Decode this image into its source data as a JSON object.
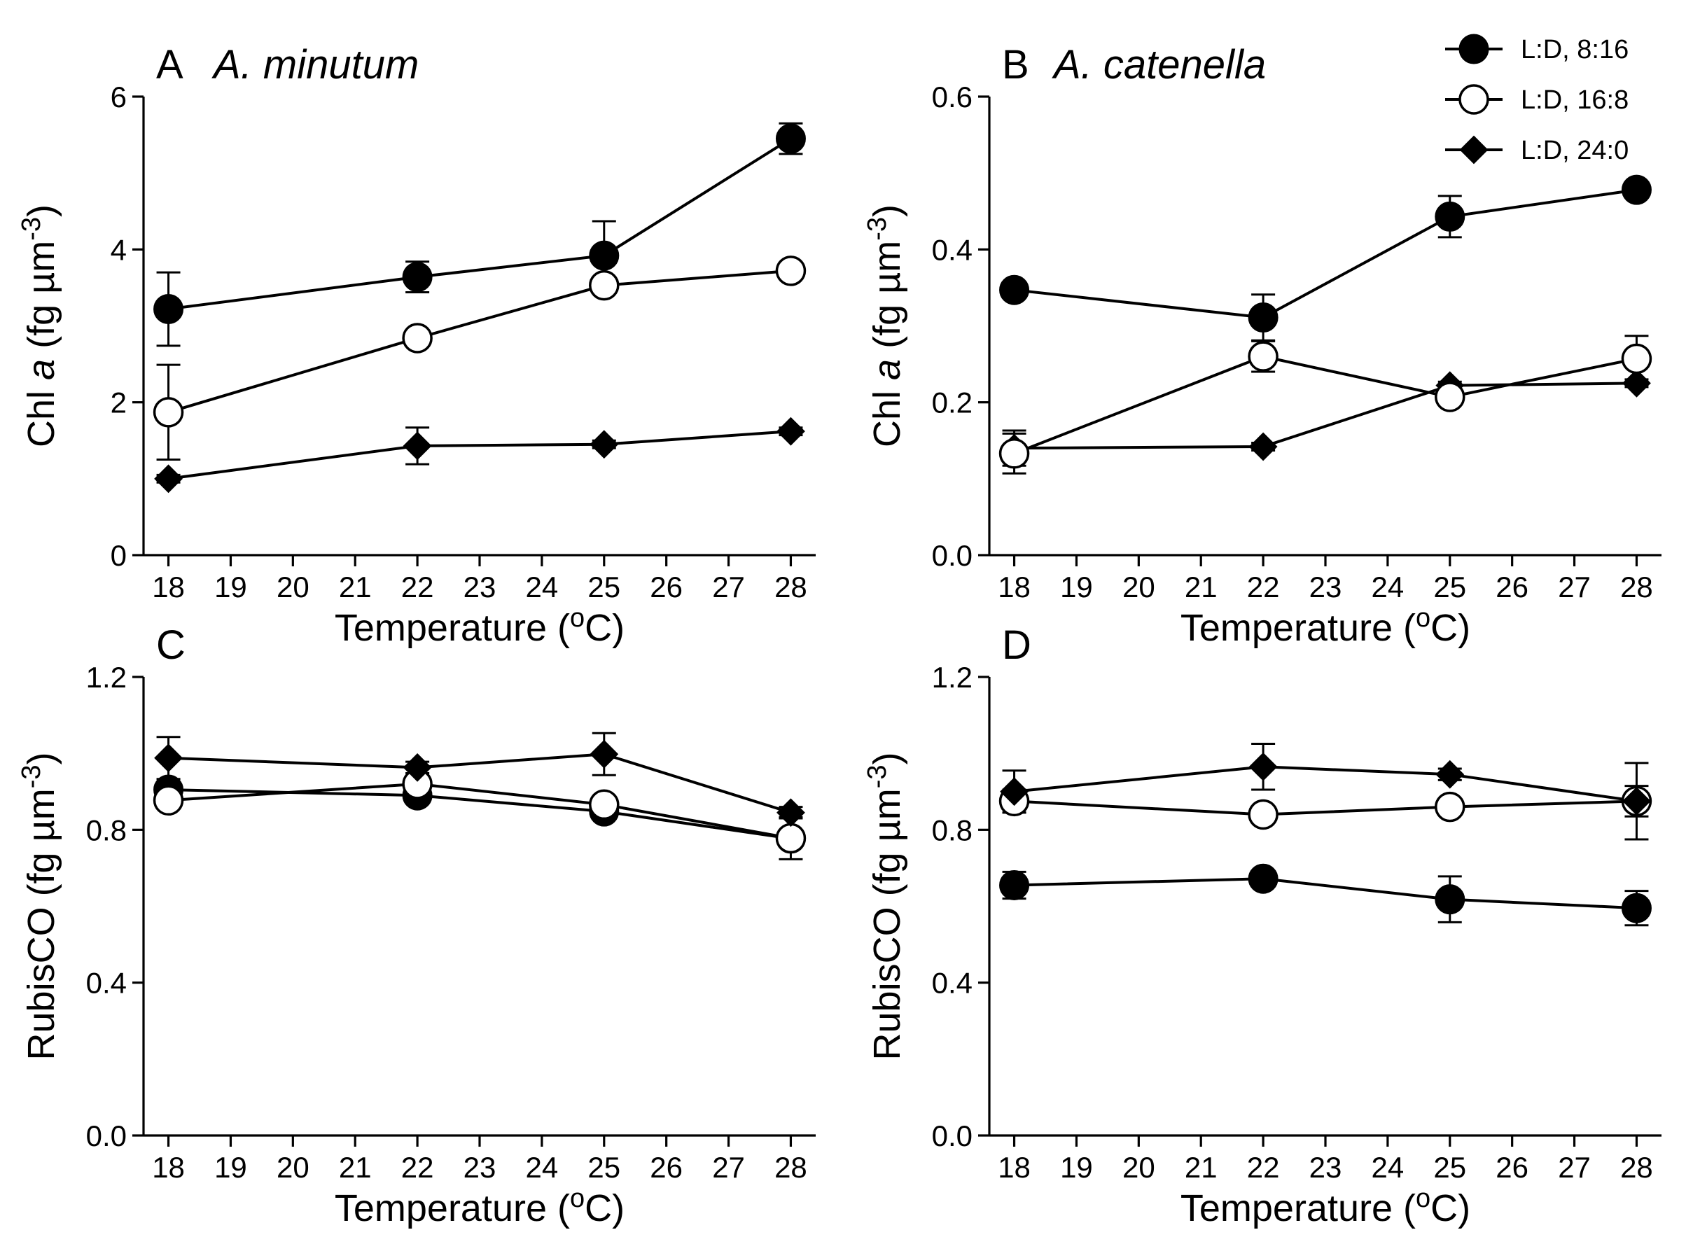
{
  "legend": [
    {
      "key": "ld816",
      "label": "L:D, 8:16",
      "marker": "filled-circle"
    },
    {
      "key": "ld168",
      "label": "L:D, 16:8",
      "marker": "open-circle"
    },
    {
      "key": "ld240",
      "label": "L:D, 24:0",
      "marker": "filled-diamond"
    }
  ],
  "chart_data": [
    {
      "type": "line",
      "panel": "A",
      "species": "A. minutum",
      "xlabel": "Temperature (oC)",
      "xlabel_parts": {
        "pre": "Temperature (",
        "sup": "o",
        "post": "C)"
      },
      "ylabel": "Chl a (fg µm-3)",
      "ylabel_parts": {
        "pre": "Chl ",
        "ital": "a",
        "mid": " (fg µm",
        "sup": "-3",
        "post": ")"
      },
      "xlim": [
        17.6,
        28.4
      ],
      "xticks": [
        18,
        19,
        20,
        21,
        22,
        23,
        24,
        25,
        26,
        27,
        28
      ],
      "xtick_labels": [
        "18",
        "19",
        "20",
        "21",
        "22",
        "23",
        "24",
        "25",
        "26",
        "27",
        "28"
      ],
      "ylim": [
        0,
        6
      ],
      "yticks": [
        0,
        2,
        4,
        6
      ],
      "ytick_labels": [
        "0",
        "2",
        "4",
        "6"
      ],
      "x": [
        18,
        22,
        25,
        28
      ],
      "series": [
        {
          "name": "L:D, 8:16",
          "key": "ld816",
          "values": [
            3.22,
            3.64,
            3.92,
            5.45
          ],
          "errors": [
            0.48,
            0.2,
            0.45,
            0.2
          ]
        },
        {
          "name": "L:D, 16:8",
          "key": "ld168",
          "values": [
            1.87,
            2.84,
            3.53,
            3.72
          ],
          "errors": [
            0.62,
            0.08,
            0.08,
            0.08
          ]
        },
        {
          "name": "L:D, 24:0",
          "key": "ld240",
          "values": [
            1.0,
            1.43,
            1.45,
            1.62
          ],
          "errors": [
            0.05,
            0.24,
            0.05,
            0.05
          ]
        }
      ]
    },
    {
      "type": "line",
      "panel": "B",
      "species": "A. catenella",
      "xlabel": "Temperature (oC)",
      "xlabel_parts": {
        "pre": "Temperature (",
        "sup": "o",
        "post": "C)"
      },
      "ylabel": "Chl a (fg µm-3)",
      "ylabel_parts": {
        "pre": "Chl ",
        "ital": "a",
        "mid": " (fg µm",
        "sup": "-3",
        "post": ")"
      },
      "xlim": [
        17.6,
        28.4
      ],
      "xticks": [
        18,
        19,
        20,
        21,
        22,
        23,
        24,
        25,
        26,
        27,
        28
      ],
      "xtick_labels": [
        "18",
        "19",
        "20",
        "21",
        "22",
        "23",
        "24",
        "25",
        "26",
        "27",
        "28"
      ],
      "ylim": [
        0,
        0.6
      ],
      "yticks": [
        0,
        0.2,
        0.4,
        0.6
      ],
      "ytick_labels": [
        "0.0",
        "0.2",
        "0.4",
        "0.6"
      ],
      "x": [
        18,
        22,
        25,
        28
      ],
      "series": [
        {
          "name": "L:D, 8:16",
          "key": "ld816",
          "values": [
            0.347,
            0.311,
            0.443,
            0.478
          ],
          "errors": [
            0.005,
            0.03,
            0.027,
            0.005
          ]
        },
        {
          "name": "L:D, 16:8",
          "key": "ld168",
          "values": [
            0.133,
            0.26,
            0.207,
            0.257
          ],
          "errors": [
            0.026,
            0.02,
            0.005,
            0.03
          ]
        },
        {
          "name": "L:D, 24:0",
          "key": "ld240",
          "values": [
            0.14,
            0.142,
            0.222,
            0.225
          ],
          "errors": [
            0.023,
            0.005,
            0.005,
            0.005
          ]
        }
      ]
    },
    {
      "type": "line",
      "panel": "C",
      "species": "",
      "xlabel": "Temperature (oC)",
      "xlabel_parts": {
        "pre": "Temperature (",
        "sup": "o",
        "post": "C)"
      },
      "ylabel": "RubisCO (fg µm-3)",
      "ylabel_parts": {
        "pre": "RubisCO (fg µm",
        "ital": "",
        "mid": "",
        "sup": "-3",
        "post": ")"
      },
      "xlim": [
        17.6,
        28.4
      ],
      "xticks": [
        18,
        19,
        20,
        21,
        22,
        23,
        24,
        25,
        26,
        27,
        28
      ],
      "xtick_labels": [
        "18",
        "19",
        "20",
        "21",
        "22",
        "23",
        "24",
        "25",
        "26",
        "27",
        "28"
      ],
      "ylim": [
        0,
        1.2
      ],
      "yticks": [
        0,
        0.4,
        0.8,
        1.2
      ],
      "ytick_labels": [
        "0.0",
        "0.4",
        "0.8",
        "1.2"
      ],
      "x": [
        18,
        22,
        25,
        28
      ],
      "series": [
        {
          "name": "L:D, 8:16",
          "key": "ld816",
          "values": [
            0.905,
            0.89,
            0.848,
            0.777
          ],
          "errors": [
            0.02,
            0.02,
            0.02,
            0.02
          ]
        },
        {
          "name": "L:D, 16:8",
          "key": "ld168",
          "values": [
            0.877,
            0.92,
            0.866,
            0.778
          ],
          "errors": [
            0.02,
            0.02,
            0.02,
            0.055
          ]
        },
        {
          "name": "L:D, 24:0",
          "key": "ld240",
          "values": [
            0.988,
            0.963,
            0.998,
            0.845
          ],
          "errors": [
            0.055,
            0.015,
            0.055,
            0.015
          ]
        }
      ]
    },
    {
      "type": "line",
      "panel": "D",
      "species": "",
      "xlabel": "Temperature (oC)",
      "xlabel_parts": {
        "pre": "Temperature (",
        "sup": "o",
        "post": "C)"
      },
      "ylabel": "RubisCO (fg µm-3)",
      "ylabel_parts": {
        "pre": "RubisCO (fg µm",
        "ital": "",
        "mid": "",
        "sup": "-3",
        "post": ")"
      },
      "xlim": [
        17.6,
        28.4
      ],
      "xticks": [
        18,
        19,
        20,
        21,
        22,
        23,
        24,
        25,
        26,
        27,
        28
      ],
      "xtick_labels": [
        "18",
        "19",
        "20",
        "21",
        "22",
        "23",
        "24",
        "25",
        "26",
        "27",
        "28"
      ],
      "ylim": [
        0,
        1.2
      ],
      "yticks": [
        0,
        0.4,
        0.8,
        1.2
      ],
      "ytick_labels": [
        "0.0",
        "0.4",
        "0.8",
        "1.2"
      ],
      "x": [
        18,
        22,
        25,
        28
      ],
      "series": [
        {
          "name": "L:D, 8:16",
          "key": "ld816",
          "values": [
            0.655,
            0.672,
            0.618,
            0.595
          ],
          "errors": [
            0.035,
            0.015,
            0.06,
            0.045
          ]
        },
        {
          "name": "L:D, 16:8",
          "key": "ld168",
          "values": [
            0.875,
            0.84,
            0.86,
            0.875
          ],
          "errors": [
            0.03,
            0.015,
            0.015,
            0.04
          ]
        },
        {
          "name": "L:D, 24:0",
          "key": "ld240",
          "values": [
            0.9,
            0.965,
            0.945,
            0.875
          ],
          "errors": [
            0.055,
            0.06,
            0.015,
            0.1
          ]
        }
      ]
    }
  ]
}
